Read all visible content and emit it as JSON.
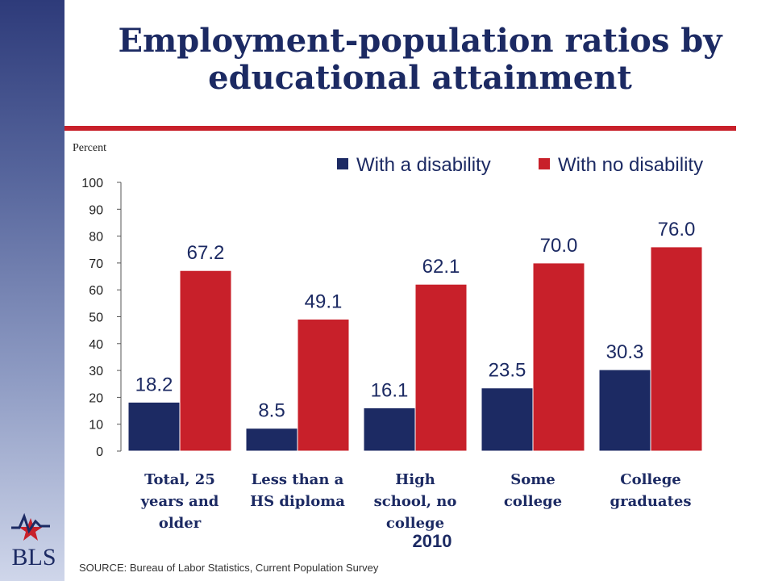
{
  "slide": {
    "title": "Employment-population ratios by educational attainment",
    "y_unit_label": "Percent",
    "source": "SOURCE:  Bureau of Labor Statistics, Current Population Survey",
    "logo_text": "BLS"
  },
  "colors": {
    "title": "#1c2a63",
    "accent_rule": "#c8202a",
    "with_disability": "#1c2a63",
    "with_no_disability": "#c8202a"
  },
  "chart_data": {
    "type": "bar",
    "title": "Employment-population ratios by educational attainment",
    "ylabel": "Percent",
    "xlabel": "2010",
    "ylim": [
      0,
      100
    ],
    "yticks": [
      0,
      10,
      20,
      30,
      40,
      50,
      60,
      70,
      80,
      90,
      100
    ],
    "legend_position": "top-right",
    "categories": [
      "Total, 25 years and older",
      "Less than a HS diploma",
      "High school, no college",
      "Some college",
      "College graduates"
    ],
    "category_lines": [
      [
        "Total, 25",
        "years and",
        "older"
      ],
      [
        "Less than a",
        "HS diploma"
      ],
      [
        "High",
        "school, no",
        "college"
      ],
      [
        "Some",
        "college"
      ],
      [
        "College",
        "graduates"
      ]
    ],
    "series": [
      {
        "name": "With a disability",
        "values": [
          18.2,
          8.5,
          16.1,
          23.5,
          30.3
        ],
        "color": "#1c2a63"
      },
      {
        "name": "With no disability",
        "values": [
          67.2,
          49.1,
          62.1,
          70.0,
          76.0
        ],
        "color": "#c8202a"
      }
    ]
  }
}
